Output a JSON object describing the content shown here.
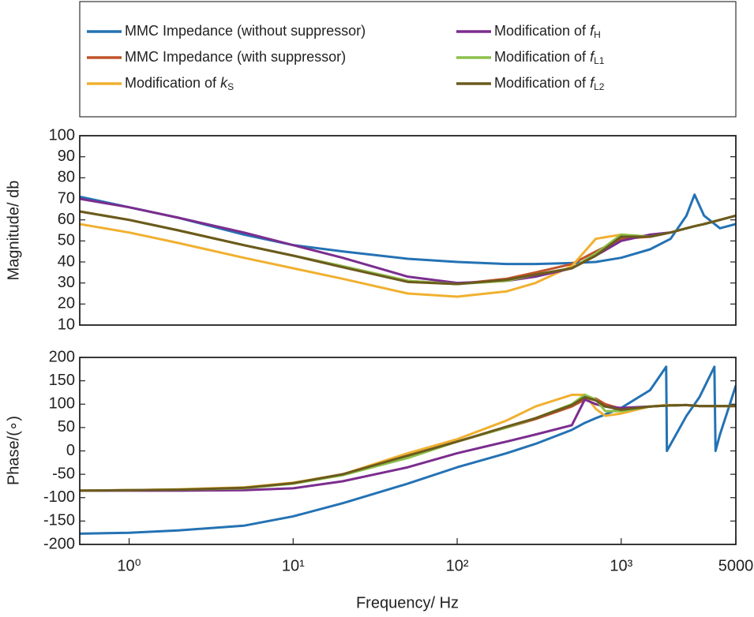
{
  "chart_data": [
    {
      "type": "line",
      "ylabel": "Magnitude/ db",
      "xscale": "log",
      "xlim": [
        0.5,
        5000
      ],
      "ylim": [
        10,
        100
      ],
      "yticks": [
        10,
        20,
        30,
        40,
        50,
        60,
        70,
        80,
        90,
        100
      ],
      "x": [
        0.5,
        1,
        2,
        5,
        10,
        20,
        50,
        100,
        200,
        300,
        500,
        700,
        1000,
        1500,
        2000,
        2500,
        2800,
        3200,
        4000,
        5000
      ],
      "series": [
        {
          "name": "MMC Impedance (without suppressor)",
          "color": "#2472b4",
          "values": [
            71,
            66,
            61,
            53,
            48,
            45,
            41.5,
            40,
            39,
            39,
            39.5,
            40,
            42,
            46,
            51,
            62,
            72,
            62,
            56,
            58
          ]
        },
        {
          "name": "MMC Impedance (with suppressor)",
          "color": "#c0532a",
          "values": [
            64,
            60,
            55,
            48,
            43,
            38,
            31,
            29.5,
            32,
            35,
            39,
            45,
            51,
            52,
            54,
            56,
            57,
            58,
            60,
            62
          ]
        },
        {
          "name": "Modification of kS",
          "color": "#f0b030",
          "values": [
            58,
            54,
            49,
            42,
            37,
            32,
            25,
            23.5,
            26,
            30,
            38,
            51,
            53,
            52,
            54,
            56,
            57,
            58,
            60,
            62
          ]
        },
        {
          "name": "Modification of fH",
          "color": "#7b2d8e",
          "values": [
            70,
            66,
            61,
            54,
            48,
            42,
            33,
            30,
            31,
            33,
            37,
            43,
            50,
            53,
            54,
            56,
            57,
            58,
            60,
            62
          ]
        },
        {
          "name": "Modification of fL1",
          "color": "#8cc04a",
          "values": [
            64,
            60,
            55,
            48,
            43,
            38,
            31,
            29.5,
            31,
            34,
            37,
            44,
            53,
            52,
            54,
            56,
            57,
            58,
            60,
            62
          ]
        },
        {
          "name": "Modification of fL2",
          "color": "#6b5a1e",
          "values": [
            64,
            60,
            55,
            48,
            43,
            37.5,
            30.5,
            29.5,
            31.5,
            34,
            37,
            43,
            52,
            52,
            54,
            56,
            57,
            58,
            60,
            62
          ]
        }
      ]
    },
    {
      "type": "line",
      "ylabel": "Phase/(∘)",
      "xlabel": "Frequency/ Hz",
      "xscale": "log",
      "xlim": [
        0.5,
        5000
      ],
      "ylim": [
        -200,
        200
      ],
      "yticks": [
        -200,
        -150,
        -100,
        -50,
        0,
        50,
        100,
        150,
        200
      ],
      "xticks": [
        {
          "value": 1,
          "label": "10⁰"
        },
        {
          "value": 10,
          "label": "10¹"
        },
        {
          "value": 100,
          "label": "10²"
        },
        {
          "value": 1000,
          "label": "10³"
        },
        5000
      ],
      "x": [
        0.5,
        1,
        2,
        5,
        10,
        20,
        50,
        100,
        200,
        300,
        500,
        600,
        700,
        800,
        1000,
        1500,
        1880,
        1900,
        2500,
        3000,
        3700,
        3760,
        4000,
        4500,
        5000
      ],
      "series": [
        {
          "color": "#2472b4",
          "values": [
            -177,
            -175,
            -170,
            -160,
            -140,
            -112,
            -70,
            -35,
            -5,
            15,
            45,
            60,
            70,
            78,
            92,
            130,
            180,
            0,
            75,
            115,
            180,
            0,
            35,
            90,
            140
          ]
        },
        {
          "color": "#c0532a",
          "values": [
            -85,
            -84,
            -83,
            -79,
            -69,
            -50,
            -12,
            20,
            50,
            68,
            95,
            110,
            112,
            100,
            90,
            95,
            97,
            97,
            98,
            96,
            96,
            96,
            96,
            96,
            96
          ]
        },
        {
          "color": "#f0b030",
          "values": [
            -85,
            -84,
            -82,
            -78,
            -68,
            -50,
            -5,
            25,
            65,
            95,
            120,
            120,
            90,
            75,
            80,
            95,
            98,
            98,
            98,
            96,
            96,
            96,
            96,
            96,
            96
          ]
        },
        {
          "color": "#7b2d8e",
          "values": [
            -85,
            -85,
            -85,
            -84,
            -80,
            -65,
            -35,
            -5,
            20,
            35,
            55,
            110,
            100,
            95,
            92,
            95,
            97,
            97,
            98,
            96,
            96,
            96,
            96,
            96,
            96
          ]
        },
        {
          "color": "#8cc04a",
          "values": [
            -85,
            -84,
            -83,
            -80,
            -70,
            -52,
            -15,
            20,
            50,
            70,
            100,
            120,
            110,
            85,
            85,
            95,
            97,
            97,
            98,
            96,
            96,
            96,
            96,
            96,
            96
          ]
        },
        {
          "color": "#6b5a1e",
          "values": [
            -85,
            -84,
            -83,
            -79,
            -69,
            -50,
            -10,
            20,
            52,
            70,
            98,
            115,
            108,
            95,
            88,
            95,
            97,
            97,
            98,
            96,
            96,
            96,
            96,
            96,
            96
          ]
        }
      ]
    }
  ]
}
